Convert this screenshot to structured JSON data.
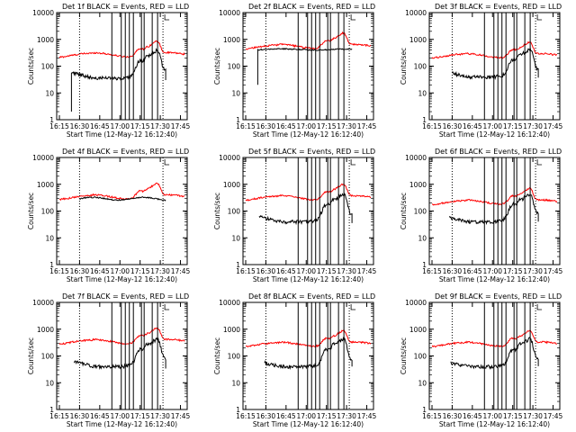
{
  "chart_data": [
    {
      "type": "line",
      "title": "Det 1f BLACK = Events, RED = LLD",
      "xlabel": "Start Time (12-May-12 16:12:40)",
      "ylabel": "Counts/sec",
      "xlim": [
        "16:13",
        "17:50"
      ],
      "ylim": [
        1,
        10000
      ],
      "yscale": "log",
      "grid": false,
      "xticks": [
        "16:15",
        "16:30",
        "16:45",
        "17:00",
        "17:15",
        "17:30",
        "17:45"
      ],
      "yticks": [
        "1",
        "10",
        "100",
        "1000",
        "10000"
      ],
      "black_start": "16:24",
      "black_end": "17:34",
      "black_shape": "lowA",
      "red_level": 270,
      "vlines_dotted": [
        "16:30",
        "17:32"
      ],
      "vlines_solid": [
        "16:54",
        "17:01",
        "17:04",
        "17:07",
        "17:10",
        "17:16",
        "17:18",
        "17:24",
        "17:28"
      ],
      "series": [
        {
          "name": "",
          "color": "#000000"
        },
        {
          "name": "",
          "color": "#ff0000"
        }
      ]
    },
    {
      "type": "line",
      "title": "Det 2f BLACK = Events, RED = LLD",
      "xlabel": "Start Time (12-May-12 16:12:40)",
      "ylabel": "Counts/sec",
      "xlim": [
        "16:13",
        "17:50"
      ],
      "ylim": [
        1,
        10000
      ],
      "yscale": "log",
      "grid": false,
      "xticks": [
        "16:15",
        "16:30",
        "16:45",
        "17:00",
        "17:15",
        "17:30",
        "17:45"
      ],
      "yticks": [
        "1",
        "10",
        "100",
        "1000",
        "10000"
      ],
      "black_start": "16:24",
      "black_end": "17:34",
      "black_shape": "highB",
      "red_level": 550,
      "vlines_dotted": [
        "16:30",
        "17:32"
      ],
      "vlines_solid": [
        "16:54",
        "17:01",
        "17:04",
        "17:07",
        "17:10",
        "17:16",
        "17:18",
        "17:24",
        "17:28"
      ],
      "series": [
        {
          "name": "",
          "color": "#000000"
        },
        {
          "name": "",
          "color": "#ff0000"
        }
      ]
    },
    {
      "type": "line",
      "title": "Det 3f BLACK = Events, RED = LLD",
      "xlabel": "Start Time (12-May-12 16:12:40)",
      "ylabel": "Counts/sec",
      "xlim": [
        "16:13",
        "17:50"
      ],
      "ylim": [
        1,
        10000
      ],
      "yscale": "log",
      "grid": false,
      "xticks": [
        "16:15",
        "16:30",
        "16:45",
        "17:00",
        "17:15",
        "17:30",
        "17:45"
      ],
      "yticks": [
        "1",
        "10",
        "100",
        "1000",
        "10000"
      ],
      "black_start": "16:30",
      "black_end": "17:34",
      "black_shape": "normal",
      "red_level": 250,
      "vlines_dotted": [
        "16:30",
        "17:32"
      ],
      "vlines_solid": [
        "16:54",
        "17:01",
        "17:04",
        "17:07",
        "17:10",
        "17:16",
        "17:18",
        "17:24",
        "17:28"
      ],
      "series": [
        {
          "name": "",
          "color": "#000000"
        },
        {
          "name": "",
          "color": "#ff0000"
        }
      ]
    },
    {
      "type": "line",
      "title": "Det 4f BLACK = Events, RED = LLD",
      "xlabel": "Start Time (12-May-12 16:12:40)",
      "ylabel": "Counts/sec",
      "xlim": [
        "16:13",
        "17:50"
      ],
      "ylim": [
        1,
        10000
      ],
      "yscale": "log",
      "grid": false,
      "xticks": [
        "16:15",
        "16:30",
        "16:45",
        "17:00",
        "17:15",
        "17:30",
        "17:45"
      ],
      "yticks": [
        "1",
        "10",
        "100",
        "1000",
        "10000"
      ],
      "black_start": "16:30",
      "black_end": "17:34",
      "black_shape": "flat",
      "red_level": 340,
      "vlines_dotted": [
        "16:30",
        "17:32"
      ],
      "vlines_solid": [],
      "series": [
        {
          "name": "",
          "color": "#000000"
        },
        {
          "name": "",
          "color": "#ff0000"
        }
      ]
    },
    {
      "type": "line",
      "title": "Det 5f BLACK = Events, RED = LLD",
      "xlabel": "Start Time (12-May-12 16:12:40)",
      "ylabel": "Counts/sec",
      "xlim": [
        "16:13",
        "17:50"
      ],
      "ylim": [
        1,
        10000
      ],
      "yscale": "log",
      "grid": false,
      "xticks": [
        "16:15",
        "16:30",
        "16:45",
        "17:00",
        "17:15",
        "17:30",
        "17:45"
      ],
      "yticks": [
        "1",
        "10",
        "100",
        "1000",
        "10000"
      ],
      "black_start": "16:25",
      "black_end": "17:34",
      "black_shape": "normal",
      "red_level": 320,
      "vlines_dotted": [
        "16:30",
        "17:32"
      ],
      "vlines_solid": [
        "16:54",
        "17:01",
        "17:04",
        "17:07",
        "17:10",
        "17:16",
        "17:18",
        "17:24",
        "17:28"
      ],
      "series": [
        {
          "name": "",
          "color": "#000000"
        },
        {
          "name": "",
          "color": "#ff0000"
        }
      ]
    },
    {
      "type": "line",
      "title": "Det 6f BLACK = Events, RED = LLD",
      "xlabel": "Start Time (12-May-12 16:12:40)",
      "ylabel": "Counts/sec",
      "xlim": [
        "16:13",
        "17:50"
      ],
      "ylim": [
        1,
        10000
      ],
      "yscale": "log",
      "grid": false,
      "xticks": [
        "16:15",
        "16:30",
        "16:45",
        "17:00",
        "17:15",
        "17:30",
        "17:45"
      ],
      "yticks": [
        "1",
        "10",
        "100",
        "1000",
        "10000"
      ],
      "black_start": "16:28",
      "black_end": "17:34",
      "black_shape": "normal",
      "red_level": 220,
      "vlines_dotted": [
        "16:30",
        "17:32"
      ],
      "vlines_solid": [
        "16:54",
        "17:01",
        "17:04",
        "17:07",
        "17:10",
        "17:16",
        "17:18",
        "17:24",
        "17:28"
      ],
      "series": [
        {
          "name": "",
          "color": "#000000"
        },
        {
          "name": "",
          "color": "#ff0000"
        }
      ]
    },
    {
      "type": "line",
      "title": "Det 7f BLACK = Events, RED = LLD",
      "xlabel": "Start Time (12-May-12 16:12:40)",
      "ylabel": "Counts/sec",
      "xlim": [
        "16:13",
        "17:50"
      ],
      "ylim": [
        1,
        10000
      ],
      "yscale": "log",
      "grid": false,
      "xticks": [
        "16:15",
        "16:30",
        "16:45",
        "17:00",
        "17:15",
        "17:30",
        "17:45"
      ],
      "yticks": [
        "1",
        "10",
        "100",
        "1000",
        "10000"
      ],
      "black_start": "16:26",
      "black_end": "17:34",
      "black_shape": "normal",
      "red_level": 350,
      "vlines_dotted": [
        "16:30",
        "17:32"
      ],
      "vlines_solid": [
        "16:54",
        "17:01",
        "17:04",
        "17:07",
        "17:10",
        "17:16",
        "17:18",
        "17:24",
        "17:28"
      ],
      "series": [
        {
          "name": "",
          "color": "#000000"
        },
        {
          "name": "",
          "color": "#ff0000"
        }
      ]
    },
    {
      "type": "line",
      "title": "Det 8f BLACK = Events, RED = LLD",
      "xlabel": "Start Time (12-May-12 16:12:40)",
      "ylabel": "Counts/sec",
      "xlim": [
        "16:13",
        "17:50"
      ],
      "ylim": [
        1,
        10000
      ],
      "yscale": "log",
      "grid": false,
      "xticks": [
        "16:15",
        "16:30",
        "16:45",
        "17:00",
        "17:15",
        "17:30",
        "17:45"
      ],
      "yticks": [
        "1",
        "10",
        "100",
        "1000",
        "10000"
      ],
      "black_start": "16:29",
      "black_end": "17:34",
      "black_shape": "normal",
      "red_level": 280,
      "vlines_dotted": [
        "16:30",
        "17:32"
      ],
      "vlines_solid": [
        "16:54",
        "17:01",
        "17:04",
        "17:07",
        "17:10",
        "17:16",
        "17:18",
        "17:24",
        "17:28"
      ],
      "series": [
        {
          "name": "",
          "color": "#000000"
        },
        {
          "name": "",
          "color": "#ff0000"
        }
      ]
    },
    {
      "type": "line",
      "title": "Det 9f BLACK = Events, RED = LLD",
      "xlabel": "Start Time (12-May-12 16:12:40)",
      "ylabel": "Counts/sec",
      "xlim": [
        "16:13",
        "17:50"
      ],
      "ylim": [
        1,
        10000
      ],
      "yscale": "log",
      "grid": false,
      "xticks": [
        "16:15",
        "16:30",
        "16:45",
        "17:00",
        "17:15",
        "17:30",
        "17:45"
      ],
      "yticks": [
        "1",
        "10",
        "100",
        "1000",
        "10000"
      ],
      "black_start": "16:29",
      "black_end": "17:34",
      "black_shape": "normal",
      "red_level": 280,
      "vlines_dotted": [
        "16:30",
        "17:32"
      ],
      "vlines_solid": [
        "16:54",
        "17:01",
        "17:04",
        "17:07",
        "17:10",
        "17:16",
        "17:18",
        "17:24",
        "17:28"
      ],
      "series": [
        {
          "name": "",
          "color": "#000000"
        },
        {
          "name": "",
          "color": "#ff0000"
        }
      ]
    }
  ]
}
